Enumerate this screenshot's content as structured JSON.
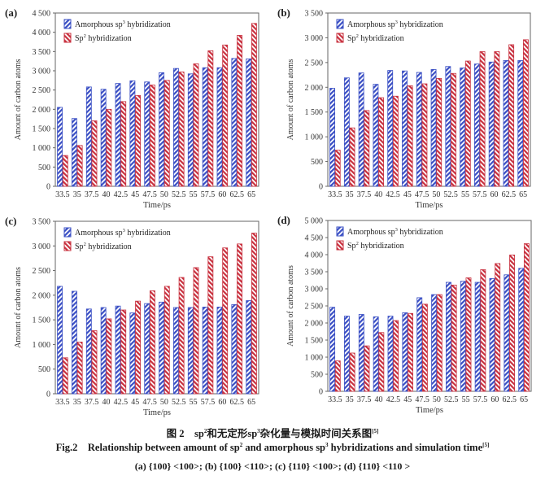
{
  "colors": {
    "sp3": "#3a4fc4",
    "sp2": "#c8303e",
    "axis": "#555555"
  },
  "chart_data": [
    {
      "type": "bar",
      "panel_label": "(a)",
      "xlabel": "Time/ps",
      "ylabel": "Amount of carbon atoms",
      "ylim": [
        0,
        4500
      ],
      "yticks": [
        0,
        500,
        1000,
        1500,
        2000,
        2500,
        3000,
        3500,
        4000,
        4500
      ],
      "ytick_labels": [
        "0",
        "500",
        "1 000",
        "1 500",
        "2 000",
        "2 500",
        "3 000",
        "3 500",
        "4 000",
        "4 500"
      ],
      "categories": [
        "33.5",
        "35",
        "37.5",
        "40",
        "42.5",
        "45",
        "47.5",
        "50",
        "52.5",
        "55",
        "57.5",
        "60",
        "62.5",
        "65"
      ],
      "legend_position": "top-left",
      "series": [
        {
          "name": "Amorphous sp³ hybridization",
          "legend_main": "Amorphous sp",
          "legend_sup": "3",
          "legend_tail": " hybridization",
          "values": [
            2050,
            1760,
            2580,
            2520,
            2670,
            2740,
            2710,
            2950,
            3060,
            2920,
            3080,
            3080,
            3320,
            3310
          ]
        },
        {
          "name": "Sp² hybridization",
          "legend_main": "Sp",
          "legend_sup": "2",
          "legend_tail": " hybridization",
          "values": [
            800,
            1060,
            1700,
            2000,
            2200,
            2360,
            2630,
            2750,
            2970,
            3180,
            3520,
            3670,
            3920,
            4230
          ]
        }
      ]
    },
    {
      "type": "bar",
      "panel_label": "(b)",
      "xlabel": "Time/ps",
      "ylabel": "Amount of carbon atoms",
      "ylim": [
        0,
        3500
      ],
      "yticks": [
        0,
        500,
        1000,
        1500,
        2000,
        2500,
        3000,
        3500
      ],
      "ytick_labels": [
        "0",
        "500",
        "1 000",
        "1 500",
        "2 000",
        "2 500",
        "3 000",
        "3 500"
      ],
      "categories": [
        "33.5",
        "35",
        "37.5",
        "40",
        "42.5",
        "45",
        "47.5",
        "50",
        "52.5",
        "55",
        "57.5",
        "60",
        "62.5",
        "65"
      ],
      "legend_position": "top-left",
      "series": [
        {
          "name": "Amorphous sp³ hybridization",
          "legend_main": "Amorphous sp",
          "legend_sup": "3",
          "legend_tail": " hybridization",
          "values": [
            1980,
            2190,
            2290,
            2060,
            2340,
            2330,
            2300,
            2360,
            2420,
            2390,
            2470,
            2510,
            2540,
            2540
          ]
        },
        {
          "name": "Sp² hybridization",
          "legend_main": "Sp",
          "legend_sup": "2",
          "legend_tail": " hybridization",
          "values": [
            730,
            1180,
            1530,
            1790,
            1820,
            2030,
            2070,
            2180,
            2280,
            2530,
            2720,
            2720,
            2860,
            2960
          ]
        }
      ]
    },
    {
      "type": "bar",
      "panel_label": "(c)",
      "xlabel": "Time/ps",
      "ylabel": "Amount of carbon atoms",
      "ylim": [
        0,
        3500
      ],
      "yticks": [
        0,
        500,
        1000,
        1500,
        2000,
        2500,
        3000,
        3500
      ],
      "ytick_labels": [
        "0",
        "500",
        "1 000",
        "1 500",
        "2 000",
        "2 500",
        "3 000",
        "3 500"
      ],
      "categories": [
        "33.5",
        "35",
        "37.5",
        "40",
        "42.5",
        "45",
        "47.5",
        "50",
        "52.5",
        "55",
        "57.5",
        "60",
        "62.5",
        "65"
      ],
      "legend_position": "top-left",
      "series": [
        {
          "name": "Amorphous sp³ hybridization",
          "legend_main": "Amorphous sp",
          "legend_sup": "3",
          "legend_tail": " hybridization",
          "values": [
            2180,
            2080,
            1720,
            1750,
            1780,
            1640,
            1830,
            1860,
            1750,
            1750,
            1760,
            1760,
            1810,
            1890
          ]
        },
        {
          "name": "Sp² hybridization",
          "legend_main": "Sp",
          "legend_sup": "2",
          "legend_tail": " hybridization",
          "values": [
            730,
            1050,
            1280,
            1520,
            1700,
            1880,
            2090,
            2180,
            2360,
            2560,
            2780,
            2960,
            3040,
            3260
          ]
        }
      ]
    },
    {
      "type": "bar",
      "panel_label": "(d)",
      "xlabel": "Time/ps",
      "ylabel": "Amount of carbon atoms",
      "ylim": [
        0,
        5000
      ],
      "yticks": [
        0,
        500,
        1000,
        1500,
        2000,
        2500,
        3000,
        3500,
        4000,
        4500,
        5000
      ],
      "ytick_labels": [
        "0",
        "500",
        "1 000",
        "1 500",
        "2 000",
        "2 500",
        "3 000",
        "3 500",
        "4 000",
        "4 500",
        "5 000"
      ],
      "categories": [
        "33.5",
        "35",
        "37.5",
        "40",
        "42.5",
        "45",
        "47.5",
        "50",
        "52.5",
        "55",
        "57.5",
        "60",
        "62.5",
        "65"
      ],
      "legend_position": "top-left",
      "series": [
        {
          "name": "Amorphous sp³ hybridization",
          "legend_main": "Amorphous sp",
          "legend_sup": "3",
          "legend_tail": " hybridization",
          "values": [
            2460,
            2200,
            2250,
            2180,
            2200,
            2300,
            2740,
            2830,
            3190,
            3220,
            3190,
            3300,
            3410,
            3600
          ]
        },
        {
          "name": "Sp² hybridization",
          "legend_main": "Sp",
          "legend_sup": "2",
          "legend_tail": " hybridization",
          "values": [
            890,
            1120,
            1330,
            1720,
            2070,
            2280,
            2550,
            2830,
            3110,
            3320,
            3560,
            3740,
            3990,
            4320
          ]
        }
      ]
    }
  ],
  "caption": {
    "zh_prefix": "图 2",
    "zh_text_1": "sp",
    "zh_sup_1": "2",
    "zh_text_2": "和无定形sp",
    "zh_sup_2": "3",
    "zh_text_3": "杂化量与模拟时间关系图",
    "zh_ref": "[5]",
    "en_prefix": "Fig.2",
    "en_text_1": "Relationship between amount of sp",
    "en_sup_1": "2",
    "en_text_2": " and amorphous sp",
    "en_sup_2": "3",
    "en_text_3": " hybridizations and simulation time",
    "en_ref": "[5]",
    "sub": "(a) {100} <100>; (b) {100} <110>; (c) {110} <100>; (d) {110} <110 >"
  }
}
